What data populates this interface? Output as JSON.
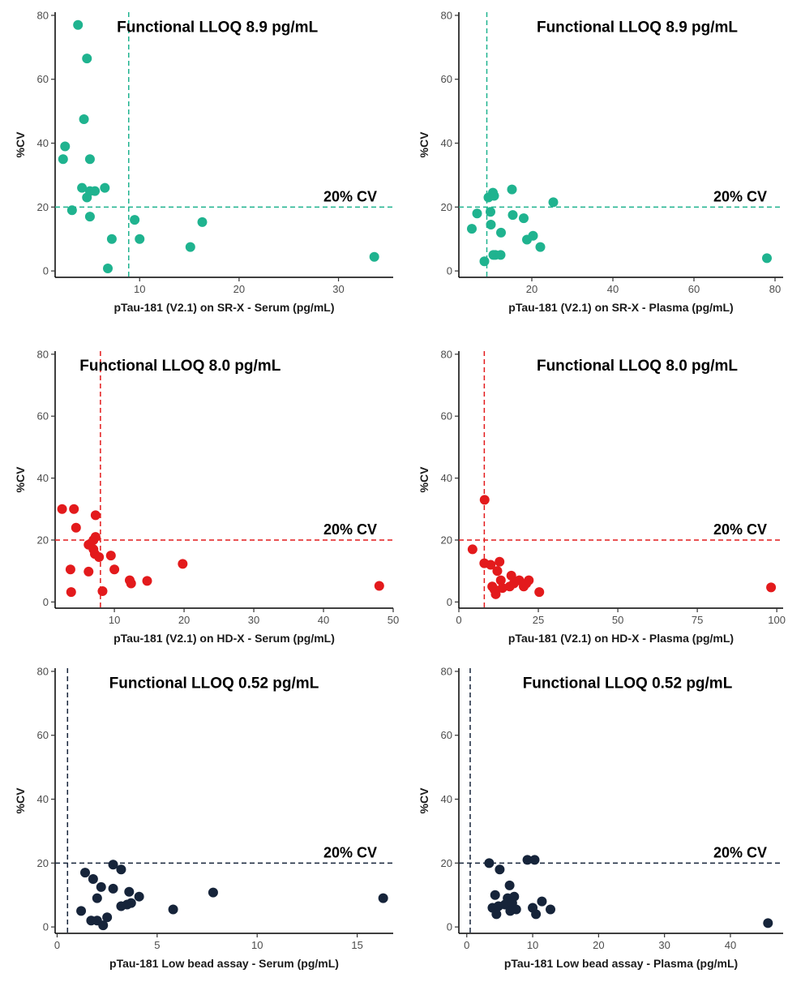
{
  "chart_data": [
    {
      "type": "scatter",
      "color": "#1fb38f",
      "xlabel": "pTau-181 (V2.1) on SR-X - Serum (pg/mL)",
      "ylabel": "%CV",
      "xlim": [
        1.5,
        35.5
      ],
      "ylim": [
        -2,
        81
      ],
      "xticks": [
        10,
        20,
        30
      ],
      "yticks": [
        0,
        20,
        40,
        60,
        80
      ],
      "vline": 8.9,
      "hline": 20,
      "lloq_label": "Functional LLOQ 8.9 pg/mL",
      "cv_label": "20% CV",
      "points": [
        [
          3.8,
          77
        ],
        [
          4.7,
          66.5
        ],
        [
          4.4,
          47.5
        ],
        [
          2.5,
          39
        ],
        [
          2.3,
          35
        ],
        [
          5,
          35
        ],
        [
          3.2,
          19
        ],
        [
          4.2,
          26
        ],
        [
          4.7,
          23
        ],
        [
          5,
          25
        ],
        [
          5.5,
          25
        ],
        [
          6.5,
          26
        ],
        [
          5,
          17
        ],
        [
          7.2,
          10
        ],
        [
          6.8,
          0.8
        ],
        [
          9.5,
          16
        ],
        [
          10,
          10
        ],
        [
          15.1,
          7.5
        ],
        [
          16.3,
          15.3
        ],
        [
          33.6,
          4.4
        ]
      ]
    },
    {
      "type": "scatter",
      "color": "#1fb38f",
      "xlabel": "pTau-181 (V2.1) on SR-X - Plasma (pg/mL)",
      "ylabel": "%CV",
      "xlim": [
        2,
        82
      ],
      "ylim": [
        -2,
        81
      ],
      "xticks": [
        20,
        40,
        60,
        80
      ],
      "yticks": [
        0,
        20,
        40,
        60,
        80
      ],
      "vline": 8.9,
      "hline": 20,
      "lloq_label": "Functional LLOQ 8.9 pg/mL",
      "cv_label": "20% CV",
      "points": [
        [
          5.2,
          13.2
        ],
        [
          6.5,
          18
        ],
        [
          8.3,
          3
        ],
        [
          9.3,
          23
        ],
        [
          9.8,
          18.5
        ],
        [
          9.9,
          14.5
        ],
        [
          10.4,
          24.5
        ],
        [
          10.7,
          23.5
        ],
        [
          10.5,
          5
        ],
        [
          11,
          5
        ],
        [
          12.3,
          5
        ],
        [
          12.4,
          12
        ],
        [
          15.1,
          25.5
        ],
        [
          15.3,
          17.5
        ],
        [
          18,
          16.5
        ],
        [
          18.8,
          9.8
        ],
        [
          20.3,
          11
        ],
        [
          22.1,
          7.5
        ],
        [
          25.3,
          21.5
        ],
        [
          78,
          4
        ]
      ]
    },
    {
      "type": "scatter",
      "color": "#e31a1c",
      "xlabel": "pTau-181 (V2.1) on HD-X - Serum (pg/mL)",
      "ylabel": "%CV",
      "xlim": [
        1.5,
        50
      ],
      "ylim": [
        -2,
        81
      ],
      "xticks": [
        10,
        20,
        30,
        40,
        50
      ],
      "yticks": [
        0,
        20,
        40,
        60,
        80
      ],
      "vline": 8.0,
      "hline": 20,
      "lloq_label": "Functional LLOQ 8.0 pg/mL",
      "cv_label": "20% CV",
      "points": [
        [
          2.5,
          30
        ],
        [
          4.2,
          30
        ],
        [
          4.5,
          24
        ],
        [
          3.7,
          10.5
        ],
        [
          3.8,
          3.2
        ],
        [
          6.3,
          18.5
        ],
        [
          7,
          17
        ],
        [
          7,
          20
        ],
        [
          7.3,
          21
        ],
        [
          7.3,
          28
        ],
        [
          7.2,
          15.5
        ],
        [
          7.8,
          14.5
        ],
        [
          6.3,
          9.8
        ],
        [
          8.3,
          3.5
        ],
        [
          9.5,
          15
        ],
        [
          10,
          10.5
        ],
        [
          12.2,
          7
        ],
        [
          12.4,
          6
        ],
        [
          14.7,
          6.8
        ],
        [
          19.8,
          12.3
        ],
        [
          48,
          5.2
        ]
      ]
    },
    {
      "type": "scatter",
      "color": "#e31a1c",
      "xlabel": "pTau-181 (V2.1) on HD-X - Plasma (pg/mL)",
      "ylabel": "%CV",
      "xlim": [
        0,
        102
      ],
      "ylim": [
        -2,
        81
      ],
      "xticks": [
        0,
        25,
        50,
        75,
        100
      ],
      "yticks": [
        0,
        20,
        40,
        60,
        80
      ],
      "vline": 8.0,
      "hline": 20,
      "lloq_label": "Functional LLOQ 8.0 pg/mL",
      "cv_label": "20% CV",
      "points": [
        [
          4.3,
          17
        ],
        [
          8.1,
          33
        ],
        [
          8,
          12.5
        ],
        [
          10,
          12
        ],
        [
          10.5,
          5
        ],
        [
          11.2,
          4
        ],
        [
          11.6,
          2.5
        ],
        [
          12.1,
          10
        ],
        [
          12.8,
          13
        ],
        [
          13.2,
          7
        ],
        [
          13.7,
          4.5
        ],
        [
          16,
          5
        ],
        [
          16.5,
          8.5
        ],
        [
          17.3,
          6
        ],
        [
          19,
          7
        ],
        [
          20.4,
          5
        ],
        [
          21.2,
          6
        ],
        [
          22,
          7
        ],
        [
          25.3,
          3.2
        ],
        [
          98.2,
          4.7
        ]
      ]
    },
    {
      "type": "scatter",
      "color": "#16243a",
      "xlabel": "pTau-181 Low bead assay - Serum (pg/mL)",
      "ylabel": "%CV",
      "xlim": [
        -0.1,
        16.8
      ],
      "ylim": [
        -2,
        81
      ],
      "xticks": [
        0,
        5,
        10,
        15
      ],
      "yticks": [
        0,
        20,
        40,
        60,
        80
      ],
      "vline": 0.52,
      "hline": 20,
      "lloq_label": "Functional LLOQ 0.52 pg/mL",
      "cv_label": "20% CV",
      "points": [
        [
          1.2,
          5
        ],
        [
          1.4,
          17
        ],
        [
          1.7,
          2
        ],
        [
          1.8,
          15
        ],
        [
          2,
          9
        ],
        [
          2,
          2
        ],
        [
          2.2,
          12.5
        ],
        [
          2.3,
          0.5
        ],
        [
          2.5,
          3
        ],
        [
          2.8,
          12
        ],
        [
          2.8,
          19.5
        ],
        [
          3.2,
          18
        ],
        [
          3.2,
          6.5
        ],
        [
          3.5,
          7
        ],
        [
          3.6,
          11
        ],
        [
          3.7,
          7.5
        ],
        [
          4.1,
          9.5
        ],
        [
          5.8,
          5.5
        ],
        [
          7.8,
          10.8
        ],
        [
          16.3,
          9
        ]
      ]
    },
    {
      "type": "scatter",
      "color": "#16243a",
      "xlabel": "pTau-181 Low bead assay - Plasma (pg/mL)",
      "ylabel": "%CV",
      "xlim": [
        -1.2,
        48
      ],
      "ylim": [
        -2,
        81
      ],
      "xticks": [
        0,
        10,
        20,
        30,
        40
      ],
      "yticks": [
        0,
        20,
        40,
        60,
        80
      ],
      "vline": 0.52,
      "hline": 20,
      "lloq_label": "Functional LLOQ 0.52 pg/mL",
      "cv_label": "20% CV",
      "points": [
        [
          3.4,
          20
        ],
        [
          3.9,
          6
        ],
        [
          4.3,
          10
        ],
        [
          4.5,
          4
        ],
        [
          4.8,
          6.5
        ],
        [
          5,
          18
        ],
        [
          5.8,
          7
        ],
        [
          6.2,
          9
        ],
        [
          6.5,
          13
        ],
        [
          6.6,
          5
        ],
        [
          6.9,
          7.5
        ],
        [
          7.2,
          9.5
        ],
        [
          7.5,
          5.5
        ],
        [
          9.2,
          21
        ],
        [
          10,
          6
        ],
        [
          10.3,
          21
        ],
        [
          10.5,
          4
        ],
        [
          11.4,
          8
        ],
        [
          12.7,
          5.5
        ],
        [
          45.7,
          1.2
        ]
      ]
    }
  ]
}
